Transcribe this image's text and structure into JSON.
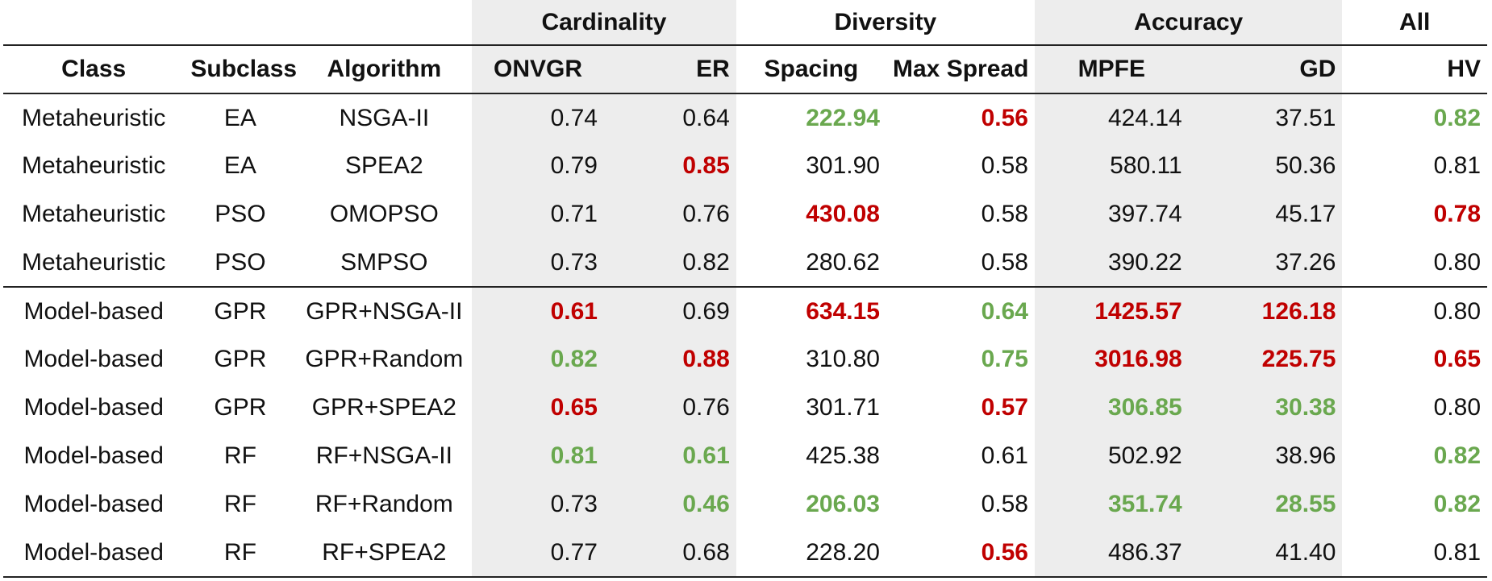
{
  "groups": {
    "cardinality": "Cardinality",
    "diversity": "Diversity",
    "accuracy": "Accuracy",
    "all": "All"
  },
  "columns": {
    "class": "Class",
    "subclass": "Subclass",
    "algorithm": "Algorithm",
    "onvgr": "ONVGR",
    "er": "ER",
    "spacing": "Spacing",
    "max_spread": "Max Spread",
    "mpfe": "MPFE",
    "gd": "GD",
    "hv": "HV"
  },
  "colors": {
    "good": "#6aa84f",
    "bad": "#c00000",
    "shade": "#ededed"
  },
  "rows": [
    {
      "class": "Metaheuristic",
      "subclass": "EA",
      "algorithm": "NSGA-II",
      "cells": [
        {
          "v": "0.74",
          "s": ""
        },
        {
          "v": "0.64",
          "s": ""
        },
        {
          "v": "222.94",
          "s": "good"
        },
        {
          "v": "0.56",
          "s": "bad"
        },
        {
          "v": "424.14",
          "s": ""
        },
        {
          "v": "37.51",
          "s": ""
        },
        {
          "v": "0.82",
          "s": "good"
        }
      ]
    },
    {
      "class": "Metaheuristic",
      "subclass": "EA",
      "algorithm": "SPEA2",
      "cells": [
        {
          "v": "0.79",
          "s": ""
        },
        {
          "v": "0.85",
          "s": "bad"
        },
        {
          "v": "301.90",
          "s": ""
        },
        {
          "v": "0.58",
          "s": ""
        },
        {
          "v": "580.11",
          "s": ""
        },
        {
          "v": "50.36",
          "s": ""
        },
        {
          "v": "0.81",
          "s": ""
        }
      ]
    },
    {
      "class": "Metaheuristic",
      "subclass": "PSO",
      "algorithm": "OMOPSO",
      "cells": [
        {
          "v": "0.71",
          "s": ""
        },
        {
          "v": "0.76",
          "s": ""
        },
        {
          "v": "430.08",
          "s": "bad"
        },
        {
          "v": "0.58",
          "s": ""
        },
        {
          "v": "397.74",
          "s": ""
        },
        {
          "v": "45.17",
          "s": ""
        },
        {
          "v": "0.78",
          "s": "bad"
        }
      ]
    },
    {
      "class": "Metaheuristic",
      "subclass": "PSO",
      "algorithm": "SMPSO",
      "cells": [
        {
          "v": "0.73",
          "s": ""
        },
        {
          "v": "0.82",
          "s": ""
        },
        {
          "v": "280.62",
          "s": ""
        },
        {
          "v": "0.58",
          "s": ""
        },
        {
          "v": "390.22",
          "s": ""
        },
        {
          "v": "37.26",
          "s": ""
        },
        {
          "v": "0.80",
          "s": ""
        }
      ]
    },
    {
      "class": "Model-based",
      "subclass": "GPR",
      "algorithm": "GPR+NSGA-II",
      "cells": [
        {
          "v": "0.61",
          "s": "bad"
        },
        {
          "v": "0.69",
          "s": ""
        },
        {
          "v": "634.15",
          "s": "bad"
        },
        {
          "v": "0.64",
          "s": "good"
        },
        {
          "v": "1425.57",
          "s": "bad"
        },
        {
          "v": "126.18",
          "s": "bad"
        },
        {
          "v": "0.80",
          "s": ""
        }
      ]
    },
    {
      "class": "Model-based",
      "subclass": "GPR",
      "algorithm": "GPR+Random",
      "cells": [
        {
          "v": "0.82",
          "s": "good"
        },
        {
          "v": "0.88",
          "s": "bad"
        },
        {
          "v": "310.80",
          "s": ""
        },
        {
          "v": "0.75",
          "s": "good"
        },
        {
          "v": "3016.98",
          "s": "bad"
        },
        {
          "v": "225.75",
          "s": "bad"
        },
        {
          "v": "0.65",
          "s": "bad"
        }
      ]
    },
    {
      "class": "Model-based",
      "subclass": "GPR",
      "algorithm": "GPR+SPEA2",
      "cells": [
        {
          "v": "0.65",
          "s": "bad"
        },
        {
          "v": "0.76",
          "s": ""
        },
        {
          "v": "301.71",
          "s": ""
        },
        {
          "v": "0.57",
          "s": "bad"
        },
        {
          "v": "306.85",
          "s": "good"
        },
        {
          "v": "30.38",
          "s": "good"
        },
        {
          "v": "0.80",
          "s": ""
        }
      ]
    },
    {
      "class": "Model-based",
      "subclass": "RF",
      "algorithm": "RF+NSGA-II",
      "cells": [
        {
          "v": "0.81",
          "s": "good"
        },
        {
          "v": "0.61",
          "s": "good"
        },
        {
          "v": "425.38",
          "s": ""
        },
        {
          "v": "0.61",
          "s": ""
        },
        {
          "v": "502.92",
          "s": ""
        },
        {
          "v": "38.96",
          "s": ""
        },
        {
          "v": "0.82",
          "s": "good"
        }
      ]
    },
    {
      "class": "Model-based",
      "subclass": "RF",
      "algorithm": "RF+Random",
      "cells": [
        {
          "v": "0.73",
          "s": ""
        },
        {
          "v": "0.46",
          "s": "good"
        },
        {
          "v": "206.03",
          "s": "good"
        },
        {
          "v": "0.58",
          "s": ""
        },
        {
          "v": "351.74",
          "s": "good"
        },
        {
          "v": "28.55",
          "s": "good"
        },
        {
          "v": "0.82",
          "s": "good"
        }
      ]
    },
    {
      "class": "Model-based",
      "subclass": "RF",
      "algorithm": "RF+SPEA2",
      "cells": [
        {
          "v": "0.77",
          "s": ""
        },
        {
          "v": "0.68",
          "s": ""
        },
        {
          "v": "228.20",
          "s": ""
        },
        {
          "v": "0.56",
          "s": "bad"
        },
        {
          "v": "486.37",
          "s": ""
        },
        {
          "v": "41.40",
          "s": ""
        },
        {
          "v": "0.81",
          "s": ""
        }
      ]
    }
  ]
}
